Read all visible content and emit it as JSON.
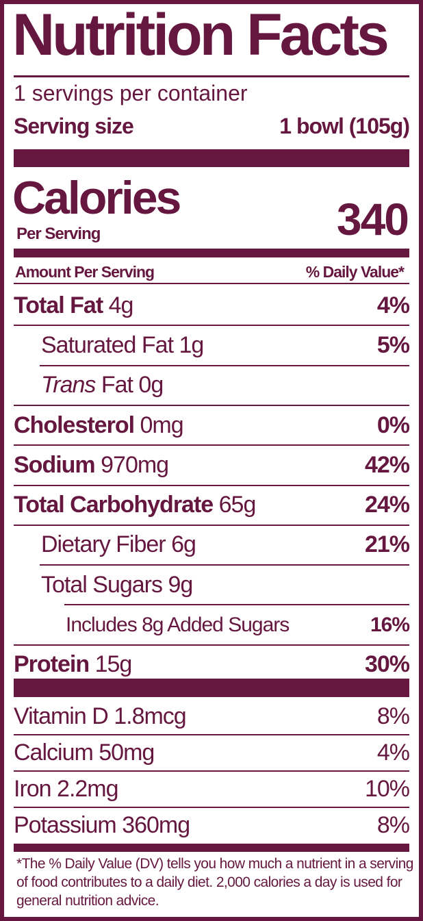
{
  "title": "Nutrition Facts",
  "servings": "1 servings per container",
  "serving_size": {
    "label": "Serving size",
    "value": "1 bowl (105g)"
  },
  "calories": {
    "label": "Calories",
    "sub": "Per Serving",
    "value": "340"
  },
  "header": {
    "amount": "Amount Per Serving",
    "dv": "% Daily Value*"
  },
  "nutrients": [
    {
      "name": "Total Fat",
      "amount": "4g",
      "dv": "4%"
    },
    {
      "name": "Saturated Fat",
      "amount": "1g",
      "dv": "5%"
    },
    {
      "italic": "Trans",
      "name": "Fat",
      "amount": "0g"
    },
    {
      "name": "Cholesterol",
      "amount": "0mg",
      "dv": "0%"
    },
    {
      "name": "Sodium",
      "amount": "970mg",
      "dv": "42%"
    },
    {
      "name": "Total Carbohydrate",
      "amount": "65g",
      "dv": "24%"
    },
    {
      "name": "Dietary Fiber",
      "amount": "6g",
      "dv": "21%"
    },
    {
      "name": "Total Sugars",
      "amount": "9g"
    },
    {
      "name": "Includes 8g Added Sugars",
      "dv": "16%"
    },
    {
      "name": "Protein",
      "amount": "15g",
      "dv": "30%"
    }
  ],
  "vitamins": [
    {
      "name": "Vitamin D",
      "amount": "1.8mcg",
      "dv": "8%"
    },
    {
      "name": "Calcium",
      "amount": "50mg",
      "dv": "4%"
    },
    {
      "name": "Iron",
      "amount": "2.2mg",
      "dv": "10%"
    },
    {
      "name": "Potassium",
      "amount": "360mg",
      "dv": "8%"
    }
  ],
  "footnote": "*The % Daily Value (DV) tells you how much a nutrient in a serving of food contributes to a daily diet. 2,000 calories a day is used for general nutrition advice."
}
